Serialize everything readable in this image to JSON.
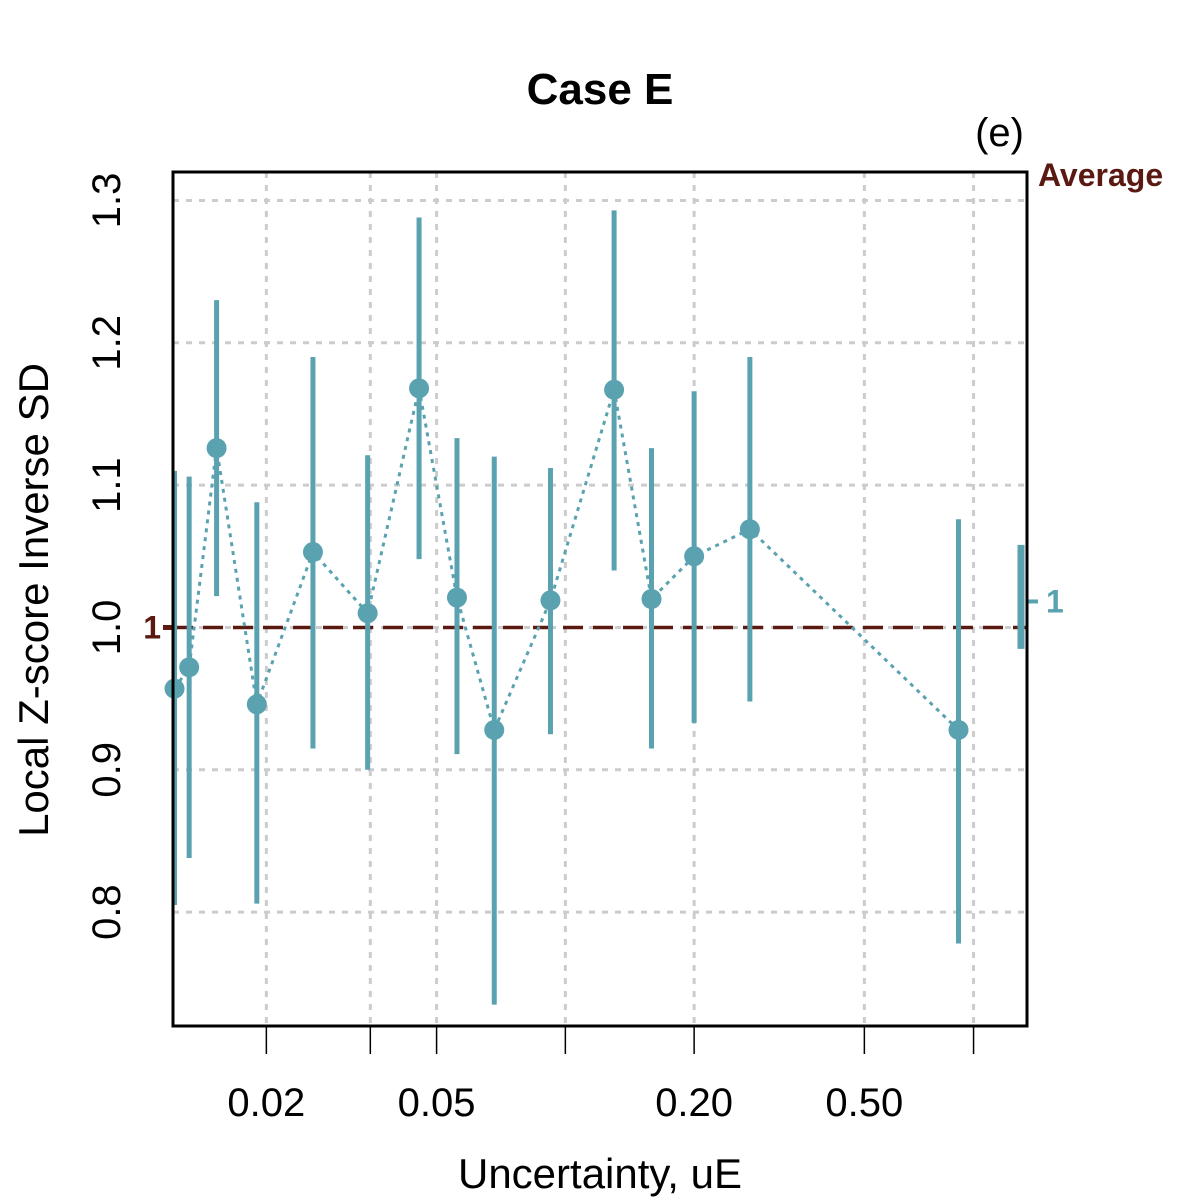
{
  "chart_data": {
    "type": "scatter",
    "title": "Case E",
    "panel_label": "(e)",
    "xlabel": "Uncertainty, uE",
    "ylabel": "Local Z-score Inverse SD",
    "x_scale": "log",
    "xlim": [
      0.0121,
      1.2
    ],
    "ylim": [
      0.72,
      1.32
    ],
    "x_ticks": [
      {
        "value": 0.02,
        "label": "0.02"
      },
      {
        "value": 0.035,
        "label": ""
      },
      {
        "value": 0.05,
        "label": "0.05"
      },
      {
        "value": 0.1,
        "label": ""
      },
      {
        "value": 0.2,
        "label": "0.20"
      },
      {
        "value": 0.5,
        "label": "0.50"
      },
      {
        "value": 0.9,
        "label": ""
      }
    ],
    "y_ticks": [
      {
        "value": 0.8,
        "label": "0.8"
      },
      {
        "value": 0.9,
        "label": "0.9"
      },
      {
        "value": 1.0,
        "label": "1.0"
      },
      {
        "value": 1.1,
        "label": "1.1"
      },
      {
        "value": 1.2,
        "label": "1.2"
      },
      {
        "value": 1.3,
        "label": "1.3"
      }
    ],
    "grid": true,
    "reference_line": {
      "value": 1.0,
      "label": "1",
      "color": "#5a1a12",
      "style": "dashed"
    },
    "average": {
      "label": "Average",
      "value": 1.0,
      "label_value": "1",
      "lower": 0.985,
      "upper": 1.058,
      "color": "#5aa2b0"
    },
    "series": [
      {
        "name": "Local Z-score Inverse SD",
        "color": "#5aa2b0",
        "points": [
          {
            "x": 0.0122,
            "y": 0.957,
            "lower": 0.805,
            "upper": 1.11
          },
          {
            "x": 0.0132,
            "y": 0.972,
            "lower": 0.838,
            "upper": 1.106
          },
          {
            "x": 0.0153,
            "y": 1.126,
            "lower": 1.022,
            "upper": 1.23
          },
          {
            "x": 0.019,
            "y": 0.946,
            "lower": 0.806,
            "upper": 1.088
          },
          {
            "x": 0.0257,
            "y": 1.053,
            "lower": 0.915,
            "upper": 1.19
          },
          {
            "x": 0.0345,
            "y": 1.01,
            "lower": 0.9,
            "upper": 1.121
          },
          {
            "x": 0.0455,
            "y": 1.168,
            "lower": 1.048,
            "upper": 1.288
          },
          {
            "x": 0.0558,
            "y": 1.021,
            "lower": 0.911,
            "upper": 1.133
          },
          {
            "x": 0.0682,
            "y": 0.928,
            "lower": 0.735,
            "upper": 1.12
          },
          {
            "x": 0.0923,
            "y": 1.019,
            "lower": 0.925,
            "upper": 1.112
          },
          {
            "x": 0.13,
            "y": 1.167,
            "lower": 1.04,
            "upper": 1.293
          },
          {
            "x": 0.159,
            "y": 1.02,
            "lower": 0.915,
            "upper": 1.126
          },
          {
            "x": 0.2,
            "y": 1.05,
            "lower": 0.933,
            "upper": 1.166
          },
          {
            "x": 0.27,
            "y": 1.069,
            "lower": 0.948,
            "upper": 1.19
          },
          {
            "x": 0.83,
            "y": 0.928,
            "lower": 0.778,
            "upper": 1.076
          }
        ]
      }
    ]
  }
}
